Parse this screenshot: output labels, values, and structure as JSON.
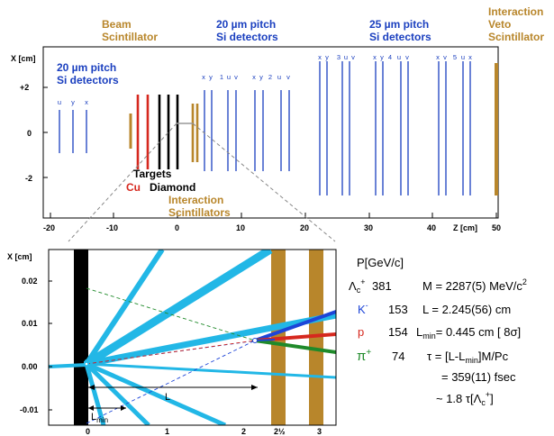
{
  "colors": {
    "blue": "#1a3fbf",
    "gold": "#b8862b",
    "red": "#d6281e",
    "black": "#000000",
    "cyan": "#22b7e6",
    "green": "#1f8a2a",
    "kaon_blue": "#1d45d8"
  },
  "top": {
    "ylabel": "X [cm]",
    "xlabel": "Z [cm]",
    "xticks": [
      "-20",
      "-10",
      "0",
      "10",
      "20",
      "30",
      "40",
      "50"
    ],
    "yticks": [
      "+2",
      "0",
      "-2"
    ],
    "headers": {
      "beam_scint_1": "Beam",
      "beam_scint_2": "Scintillator",
      "si20a_1": "20 µm pitch",
      "si20a_2": "Si detectors",
      "si20b_1": "20 µm pitch",
      "si20b_2": "Si detectors",
      "si25_1": "25 µm pitch",
      "si25_2": "Si detectors",
      "veto_1": "Interaction",
      "veto_2": "Veto",
      "veto_3": "Scintillator",
      "targets": "Targets",
      "cu": "Cu",
      "diamond": "Diamond",
      "int_scint_1": "Interaction",
      "int_scint_2": "Scintillators"
    },
    "det_labels": {
      "g0": [
        "u",
        "y",
        "x"
      ],
      "g1": [
        "x",
        "y",
        "1",
        "u",
        "v",
        "x",
        "y",
        "2",
        "u",
        "v"
      ],
      "g2": [
        "x",
        "y",
        "3",
        "u",
        "v",
        "x",
        "y",
        "4",
        "u",
        "v",
        "x",
        "v",
        "5",
        "u",
        "x"
      ]
    }
  },
  "bottom": {
    "ylabel": "X [cm]",
    "yticks": [
      "0.02",
      "0.01",
      "0.00",
      "-0.01"
    ],
    "xticks": [
      "0",
      "1",
      "2",
      "3"
    ],
    "xtick_mid": "2½",
    "L_label": "L",
    "Lmin_label": "L",
    "Lmin_sub": "min"
  },
  "table": {
    "header": "P[GeV/c]",
    "lambda_sym": "Λ",
    "lambda_sub": "c",
    "lambda_sup": "+",
    "lambda_p": "381",
    "mass_text": "M = 2287(5) MeV/c",
    "mass_sup": "2",
    "k_sym": "K",
    "k_sup": "-",
    "k_p": "153",
    "L_text": "L  = 2.245(56) cm",
    "p_sym": "p",
    "p_p": "154",
    "Lmin_L": "L",
    "Lmin_sub": "min",
    "Lmin_rest": "= 0.445 cm [ 8σ]",
    "pi_sym": "π",
    "pi_sup": "+",
    "pi_p": "74",
    "tau_text": "τ = [L-L",
    "tau_sub": "min",
    "tau_rest": "]M/Pc",
    "fsec": "= 359(11) fsec",
    "approx": "~  1.8  τ[Λ",
    "approx_sub": "c",
    "approx_sup": "+",
    "approx_end": "]"
  }
}
